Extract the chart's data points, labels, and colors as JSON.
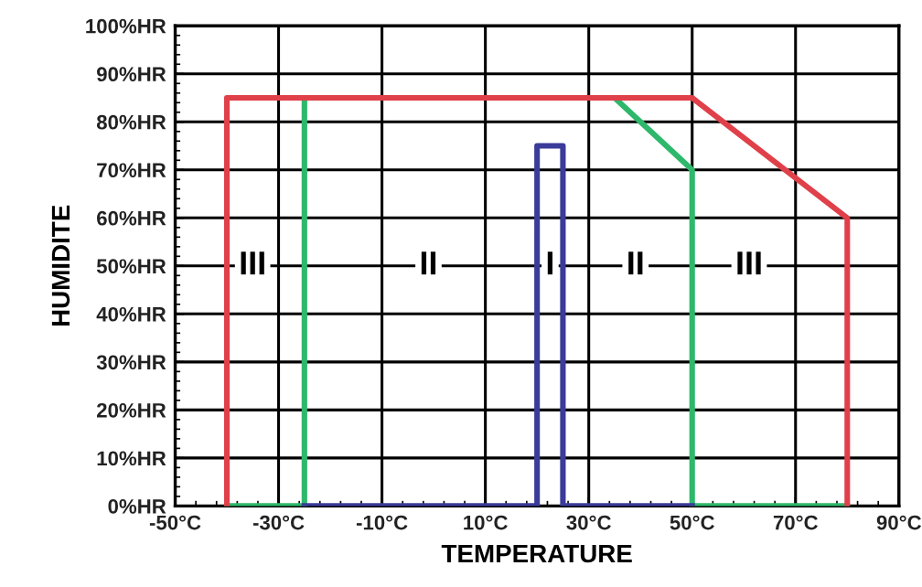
{
  "chart_data": {
    "type": "line",
    "xlabel": "TEMPERATURE",
    "ylabel": "HUMIDITE",
    "series": [
      {
        "color": "#2eb86b",
        "x": [
          -40,
          -25,
          -25,
          35,
          50,
          50,
          80
        ],
        "values": [
          0,
          0,
          85,
          85,
          70,
          0,
          0
        ]
      },
      {
        "color": "#3b3b9a",
        "x": [
          -25,
          20,
          20,
          25,
          25,
          50
        ],
        "values": [
          0,
          0,
          75,
          75,
          0,
          0
        ]
      },
      {
        "color": "#e0404a",
        "x": [
          -40,
          -40,
          50,
          80,
          80
        ],
        "values": [
          0,
          85,
          85,
          60,
          0
        ]
      }
    ],
    "xlim": [
      -50,
      90
    ],
    "ylim": [
      0,
      100
    ],
    "xticks": [
      {
        "value": -50,
        "label": "-50°C"
      },
      {
        "value": -30,
        "label": "-30°C"
      },
      {
        "value": -10,
        "label": "-10°C"
      },
      {
        "value": 10,
        "label": "10°C"
      },
      {
        "value": 30,
        "label": "30°C"
      },
      {
        "value": 50,
        "label": "50°C"
      },
      {
        "value": 70,
        "label": "70°C"
      },
      {
        "value": 90,
        "label": "90°C"
      }
    ],
    "yticks": [
      {
        "value": 0,
        "label": "0%HR"
      },
      {
        "value": 10,
        "label": "10%HR"
      },
      {
        "value": 20,
        "label": "20%HR"
      },
      {
        "value": 30,
        "label": "30%HR"
      },
      {
        "value": 40,
        "label": "40%HR"
      },
      {
        "value": 50,
        "label": "50%HR"
      },
      {
        "value": 60,
        "label": "60%HR"
      },
      {
        "value": 70,
        "label": "70%HR"
      },
      {
        "value": 80,
        "label": "80%HR"
      },
      {
        "value": 90,
        "label": "90%HR"
      },
      {
        "value": 100,
        "label": "100%HR"
      }
    ],
    "grid": true,
    "marker": "none",
    "line_style": "solid",
    "annotations": [
      "III",
      "II",
      "I",
      "II",
      "III"
    ]
  }
}
